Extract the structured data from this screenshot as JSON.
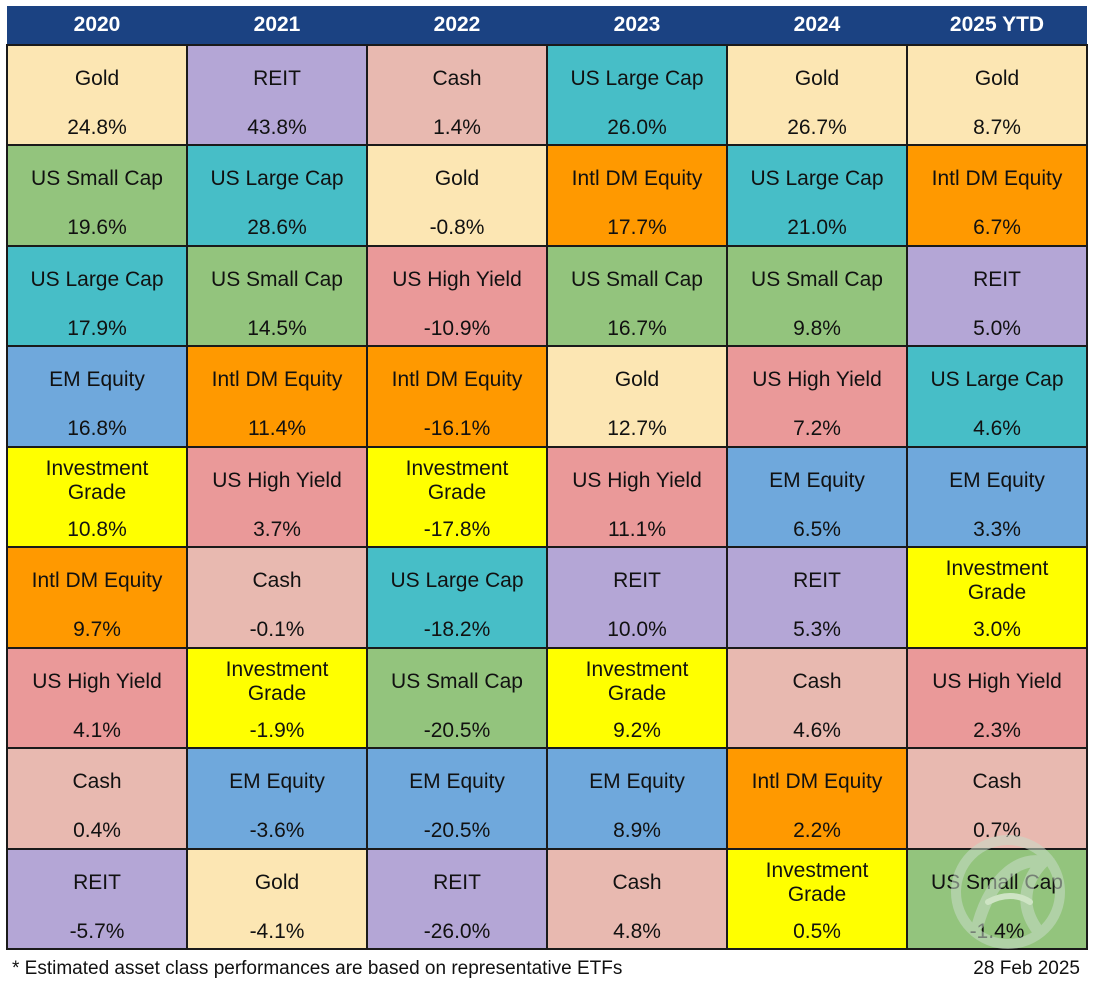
{
  "chart_data": {
    "type": "table",
    "columns": [
      "2020",
      "2021",
      "2022",
      "2023",
      "2024",
      "2025 YTD"
    ],
    "colors": {
      "Gold": "#fce6b3",
      "REIT": "#b4a6d6",
      "Cash": "#e8b9b0",
      "US Large Cap": "#47bec7",
      "US Small Cap": "#93c47d",
      "Intl DM Equity": "#ff9900",
      "US High Yield": "#ea9999",
      "EM Equity": "#6fa8dc",
      "Investment Grade": "#ffff00"
    },
    "grid": [
      [
        {
          "asset": "Gold",
          "value": "24.8%"
        },
        {
          "asset": "REIT",
          "value": "43.8%"
        },
        {
          "asset": "Cash",
          "value": "1.4%"
        },
        {
          "asset": "US Large Cap",
          "value": "26.0%"
        },
        {
          "asset": "Gold",
          "value": "26.7%"
        },
        {
          "asset": "Gold",
          "value": "8.7%"
        }
      ],
      [
        {
          "asset": "US Small Cap",
          "value": "19.6%"
        },
        {
          "asset": "US Large Cap",
          "value": "28.6%"
        },
        {
          "asset": "Gold",
          "value": "-0.8%"
        },
        {
          "asset": "Intl DM Equity",
          "value": "17.7%"
        },
        {
          "asset": "US Large Cap",
          "value": "21.0%"
        },
        {
          "asset": "Intl DM Equity",
          "value": "6.7%"
        }
      ],
      [
        {
          "asset": "US Large Cap",
          "value": "17.9%"
        },
        {
          "asset": "US Small Cap",
          "value": "14.5%"
        },
        {
          "asset": "US High Yield",
          "value": "-10.9%"
        },
        {
          "asset": "US Small Cap",
          "value": "16.7%"
        },
        {
          "asset": "US Small Cap",
          "value": "9.8%"
        },
        {
          "asset": "REIT",
          "value": "5.0%"
        }
      ],
      [
        {
          "asset": "EM Equity",
          "value": "16.8%"
        },
        {
          "asset": "Intl DM Equity",
          "value": "11.4%"
        },
        {
          "asset": "Intl DM Equity",
          "value": "-16.1%"
        },
        {
          "asset": "Gold",
          "value": "12.7%"
        },
        {
          "asset": "US High Yield",
          "value": "7.2%"
        },
        {
          "asset": "US Large Cap",
          "value": "4.6%"
        }
      ],
      [
        {
          "asset": "Investment Grade",
          "value": "10.8%"
        },
        {
          "asset": "US High Yield",
          "value": "3.7%"
        },
        {
          "asset": "Investment Grade",
          "value": "-17.8%"
        },
        {
          "asset": "US High Yield",
          "value": "11.1%"
        },
        {
          "asset": "EM Equity",
          "value": "6.5%"
        },
        {
          "asset": "EM Equity",
          "value": "3.3%"
        }
      ],
      [
        {
          "asset": "Intl DM Equity",
          "value": "9.7%"
        },
        {
          "asset": "Cash",
          "value": "-0.1%"
        },
        {
          "asset": "US Large Cap",
          "value": "-18.2%"
        },
        {
          "asset": "REIT",
          "value": "10.0%"
        },
        {
          "asset": "REIT",
          "value": "5.3%"
        },
        {
          "asset": "Investment Grade",
          "value": "3.0%"
        }
      ],
      [
        {
          "asset": "US High Yield",
          "value": "4.1%"
        },
        {
          "asset": "Investment Grade",
          "value": "-1.9%"
        },
        {
          "asset": "US Small Cap",
          "value": "-20.5%"
        },
        {
          "asset": "Investment Grade",
          "value": "9.2%"
        },
        {
          "asset": "Cash",
          "value": "4.6%"
        },
        {
          "asset": "US High Yield",
          "value": "2.3%"
        }
      ],
      [
        {
          "asset": "Cash",
          "value": "0.4%"
        },
        {
          "asset": "EM Equity",
          "value": "-3.6%"
        },
        {
          "asset": "EM Equity",
          "value": "-20.5%"
        },
        {
          "asset": "EM Equity",
          "value": "8.9%"
        },
        {
          "asset": "Intl DM Equity",
          "value": "2.2%"
        },
        {
          "asset": "Cash",
          "value": "0.7%"
        }
      ],
      [
        {
          "asset": "REIT",
          "value": "-5.7%"
        },
        {
          "asset": "Gold",
          "value": "-4.1%"
        },
        {
          "asset": "REIT",
          "value": "-26.0%"
        },
        {
          "asset": "Cash",
          "value": "4.8%"
        },
        {
          "asset": "Investment Grade",
          "value": "0.5%"
        },
        {
          "asset": "US Small Cap",
          "value": "-1.4%"
        }
      ]
    ]
  },
  "header_bg": "#1b4282",
  "footnote": "* Estimated asset class performances are based on representative ETFs",
  "report_date": "28 Feb 2025",
  "watermark_icon": "logo-watermark-icon"
}
